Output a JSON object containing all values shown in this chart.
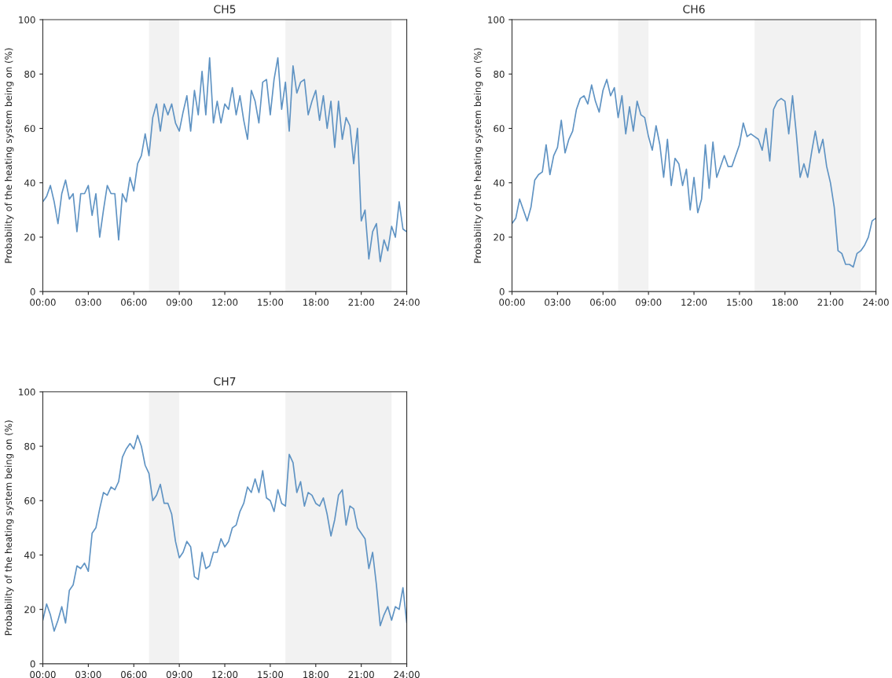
{
  "chart_data": [
    {
      "type": "line",
      "title": "CH5",
      "ylabel": "Probability of the heating system being on (%)",
      "xlim": [
        0,
        24
      ],
      "ylim": [
        0,
        100
      ],
      "xticks": [
        {
          "value": 0,
          "label": "00:00"
        },
        {
          "value": 3,
          "label": "03:00"
        },
        {
          "value": 6,
          "label": "06:00"
        },
        {
          "value": 9,
          "label": "09:00"
        },
        {
          "value": 12,
          "label": "12:00"
        },
        {
          "value": 15,
          "label": "15:00"
        },
        {
          "value": 18,
          "label": "18:00"
        },
        {
          "value": 21,
          "label": "21:00"
        },
        {
          "value": 24,
          "label": "24:00"
        }
      ],
      "yticks": [
        0,
        20,
        40,
        60,
        80,
        100
      ],
      "grid": false,
      "legend": false,
      "bands": [
        {
          "axis": "x",
          "from": 7,
          "to": 9,
          "color": "#f2f2f2"
        },
        {
          "axis": "x",
          "from": 16,
          "to": 23,
          "color": "#f2f2f2"
        }
      ],
      "x": [
        0,
        0.25,
        0.5,
        0.75,
        1,
        1.25,
        1.5,
        1.75,
        2,
        2.25,
        2.5,
        2.75,
        3,
        3.25,
        3.5,
        3.75,
        4,
        4.25,
        4.5,
        4.75,
        5,
        5.25,
        5.5,
        5.75,
        6,
        6.25,
        6.5,
        6.75,
        7,
        7.25,
        7.5,
        7.75,
        8,
        8.25,
        8.5,
        8.75,
        9,
        9.25,
        9.5,
        9.75,
        10,
        10.25,
        10.5,
        10.75,
        11,
        11.25,
        11.5,
        11.75,
        12,
        12.25,
        12.5,
        12.75,
        13,
        13.25,
        13.5,
        13.75,
        14,
        14.25,
        14.5,
        14.75,
        15,
        15.25,
        15.5,
        15.75,
        16,
        16.25,
        16.5,
        16.75,
        17,
        17.25,
        17.5,
        17.75,
        18,
        18.25,
        18.5,
        18.75,
        19,
        19.25,
        19.5,
        19.75,
        20,
        20.25,
        20.5,
        20.75,
        21,
        21.25,
        21.5,
        21.75,
        22,
        22.25,
        22.5,
        22.75,
        23,
        23.25,
        23.5,
        23.75,
        24
      ],
      "series": [
        {
          "color": "#5f93c3",
          "values": [
            33,
            35,
            39,
            33,
            25,
            36,
            41,
            34,
            36,
            22,
            36,
            36,
            39,
            28,
            36,
            20,
            30,
            39,
            36,
            36,
            19,
            36,
            33,
            42,
            37,
            47,
            50,
            58,
            50,
            64,
            69,
            59,
            69,
            65,
            69,
            62,
            59,
            66,
            72,
            59,
            74,
            65,
            81,
            65,
            86,
            62,
            70,
            62,
            69,
            67,
            75,
            65,
            72,
            63,
            56,
            74,
            70,
            62,
            77,
            78,
            65,
            78,
            86,
            67,
            77,
            59,
            83,
            73,
            77,
            78,
            65,
            70,
            74,
            63,
            72,
            60,
            70,
            53,
            70,
            56,
            64,
            61,
            47,
            60,
            26,
            30,
            12,
            22,
            25,
            11,
            19,
            15,
            24,
            20,
            33,
            23,
            22
          ]
        }
      ]
    },
    {
      "type": "line",
      "title": "CH6",
      "ylabel": "Probability of the heating system being on (%)",
      "xlim": [
        0,
        24
      ],
      "ylim": [
        0,
        100
      ],
      "xticks": [
        {
          "value": 0,
          "label": "00:00"
        },
        {
          "value": 3,
          "label": "03:00"
        },
        {
          "value": 6,
          "label": "06:00"
        },
        {
          "value": 9,
          "label": "09:00"
        },
        {
          "value": 12,
          "label": "12:00"
        },
        {
          "value": 15,
          "label": "15:00"
        },
        {
          "value": 18,
          "label": "18:00"
        },
        {
          "value": 21,
          "label": "21:00"
        },
        {
          "value": 24,
          "label": "24:00"
        }
      ],
      "yticks": [
        0,
        20,
        40,
        60,
        80,
        100
      ],
      "grid": false,
      "legend": false,
      "bands": [
        {
          "axis": "x",
          "from": 7,
          "to": 9,
          "color": "#f2f2f2"
        },
        {
          "axis": "x",
          "from": 16,
          "to": 23,
          "color": "#f2f2f2"
        }
      ],
      "x": [
        0,
        0.25,
        0.5,
        0.75,
        1,
        1.25,
        1.5,
        1.75,
        2,
        2.25,
        2.5,
        2.75,
        3,
        3.25,
        3.5,
        3.75,
        4,
        4.25,
        4.5,
        4.75,
        5,
        5.25,
        5.5,
        5.75,
        6,
        6.25,
        6.5,
        6.75,
        7,
        7.25,
        7.5,
        7.75,
        8,
        8.25,
        8.5,
        8.75,
        9,
        9.25,
        9.5,
        9.75,
        10,
        10.25,
        10.5,
        10.75,
        11,
        11.25,
        11.5,
        11.75,
        12,
        12.25,
        12.5,
        12.75,
        13,
        13.25,
        13.5,
        13.75,
        14,
        14.25,
        14.5,
        14.75,
        15,
        15.25,
        15.5,
        15.75,
        16,
        16.25,
        16.5,
        16.75,
        17,
        17.25,
        17.5,
        17.75,
        18,
        18.25,
        18.5,
        18.75,
        19,
        19.25,
        19.5,
        19.75,
        20,
        20.25,
        20.5,
        20.75,
        21,
        21.25,
        21.5,
        21.75,
        22,
        22.25,
        22.5,
        22.75,
        23,
        23.25,
        23.5,
        23.75,
        24
      ],
      "series": [
        {
          "color": "#5f93c3",
          "values": [
            25,
            27,
            34,
            30,
            26,
            31,
            41,
            43,
            44,
            54,
            43,
            50,
            53,
            63,
            51,
            56,
            59,
            67,
            71,
            72,
            69,
            76,
            70,
            66,
            74,
            78,
            72,
            75,
            64,
            72,
            58,
            68,
            59,
            70,
            65,
            64,
            57,
            52,
            61,
            54,
            42,
            56,
            39,
            49,
            47,
            39,
            45,
            30,
            42,
            29,
            34,
            54,
            38,
            55,
            42,
            46,
            50,
            46,
            46,
            50,
            54,
            62,
            57,
            58,
            57,
            56,
            52,
            60,
            48,
            67,
            70,
            71,
            70,
            58,
            72,
            58,
            42,
            47,
            42,
            51,
            59,
            51,
            56,
            46,
            40,
            31,
            15,
            14,
            10,
            10,
            9,
            14,
            15,
            17,
            20,
            26,
            27
          ]
        }
      ]
    },
    {
      "type": "line",
      "title": "CH7",
      "ylabel": "Probability of the heating system being on (%)",
      "xlim": [
        0,
        24
      ],
      "ylim": [
        0,
        100
      ],
      "xticks": [
        {
          "value": 0,
          "label": "00:00"
        },
        {
          "value": 3,
          "label": "03:00"
        },
        {
          "value": 6,
          "label": "06:00"
        },
        {
          "value": 9,
          "label": "09:00"
        },
        {
          "value": 12,
          "label": "12:00"
        },
        {
          "value": 15,
          "label": "15:00"
        },
        {
          "value": 18,
          "label": "18:00"
        },
        {
          "value": 21,
          "label": "21:00"
        },
        {
          "value": 24,
          "label": "24:00"
        }
      ],
      "yticks": [
        0,
        20,
        40,
        60,
        80,
        100
      ],
      "grid": false,
      "legend": false,
      "bands": [
        {
          "axis": "x",
          "from": 7,
          "to": 9,
          "color": "#f2f2f2"
        },
        {
          "axis": "x",
          "from": 16,
          "to": 23,
          "color": "#f2f2f2"
        }
      ],
      "x": [
        0,
        0.25,
        0.5,
        0.75,
        1,
        1.25,
        1.5,
        1.75,
        2,
        2.25,
        2.5,
        2.75,
        3,
        3.25,
        3.5,
        3.75,
        4,
        4.25,
        4.5,
        4.75,
        5,
        5.25,
        5.5,
        5.75,
        6,
        6.25,
        6.5,
        6.75,
        7,
        7.25,
        7.5,
        7.75,
        8,
        8.25,
        8.5,
        8.75,
        9,
        9.25,
        9.5,
        9.75,
        10,
        10.25,
        10.5,
        10.75,
        11,
        11.25,
        11.5,
        11.75,
        12,
        12.25,
        12.5,
        12.75,
        13,
        13.25,
        13.5,
        13.75,
        14,
        14.25,
        14.5,
        14.75,
        15,
        15.25,
        15.5,
        15.75,
        16,
        16.25,
        16.5,
        16.75,
        17,
        17.25,
        17.5,
        17.75,
        18,
        18.25,
        18.5,
        18.75,
        19,
        19.25,
        19.5,
        19.75,
        20,
        20.25,
        20.5,
        20.75,
        21,
        21.25,
        21.5,
        21.75,
        22,
        22.25,
        22.5,
        22.75,
        23,
        23.25,
        23.5,
        23.75,
        24
      ],
      "series": [
        {
          "color": "#5f93c3",
          "values": [
            16,
            22,
            18,
            12,
            16,
            21,
            15,
            27,
            29,
            36,
            35,
            37,
            34,
            48,
            50,
            57,
            63,
            62,
            65,
            64,
            67,
            76,
            79,
            81,
            79,
            84,
            80,
            73,
            70,
            60,
            62,
            66,
            59,
            59,
            55,
            45,
            39,
            41,
            45,
            43,
            32,
            31,
            41,
            35,
            36,
            41,
            41,
            46,
            43,
            45,
            50,
            51,
            56,
            59,
            65,
            63,
            68,
            63,
            71,
            61,
            60,
            56,
            64,
            59,
            58,
            77,
            74,
            63,
            67,
            58,
            63,
            62,
            59,
            58,
            61,
            55,
            47,
            53,
            62,
            64,
            51,
            58,
            57,
            50,
            48,
            46,
            35,
            41,
            29,
            14,
            18,
            21,
            16,
            21,
            20,
            28,
            15
          ]
        }
      ]
    }
  ]
}
